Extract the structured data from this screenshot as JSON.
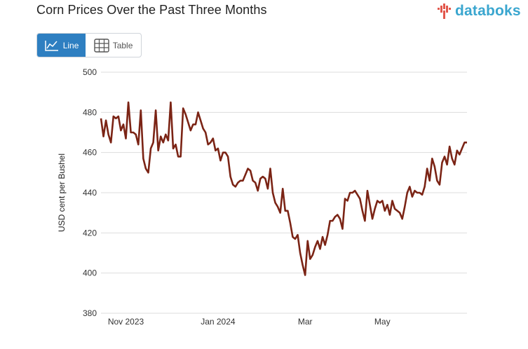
{
  "header": {
    "title": "Corn Prices Over the Past Three Months",
    "logo_text": "databoks"
  },
  "view_toggle": {
    "line_label": "Line",
    "table_label": "Table",
    "active": "Line"
  },
  "colors": {
    "line": "#7b2415",
    "grid": "#dddddd",
    "toggle_active": "#2e7fc1",
    "brand_blue": "#3aa6cf",
    "brand_red": "#e2574c"
  },
  "chart_data": {
    "type": "line",
    "title": "",
    "xlabel": "",
    "ylabel": "USD cent per Bushel",
    "ylim": [
      380,
      500
    ],
    "yticks": [
      380,
      400,
      420,
      440,
      460,
      480,
      500
    ],
    "grid": true,
    "xtick_labels": [
      {
        "label": "Nov 2023",
        "index": 10
      },
      {
        "label": "Jan 2024",
        "index": 47
      },
      {
        "label": "Mar",
        "index": 82
      },
      {
        "label": "May",
        "index": 113
      }
    ],
    "series": [
      {
        "values": [
          477,
          468,
          476,
          469,
          465,
          478,
          477,
          478,
          471,
          474,
          467,
          485,
          470,
          470,
          469,
          464,
          481,
          457,
          452,
          450,
          462,
          465,
          481,
          461,
          468,
          465,
          469,
          466,
          485,
          462,
          464,
          458,
          458,
          482,
          479,
          475,
          471,
          474,
          474,
          480,
          476,
          472,
          470,
          464,
          465,
          467,
          461,
          462,
          456,
          460,
          460,
          458,
          448,
          444,
          443,
          445,
          446,
          446,
          449,
          452,
          451,
          446,
          445,
          441,
          447,
          448,
          447,
          442,
          452,
          440,
          435,
          433,
          430,
          442,
          431,
          431,
          425,
          418,
          417,
          419,
          410,
          404,
          399,
          416,
          407,
          409,
          413,
          416,
          412,
          418,
          414,
          419,
          426,
          426,
          428,
          429,
          427,
          422,
          437,
          436,
          440,
          440,
          441,
          439,
          437,
          431,
          426,
          441,
          434,
          427,
          432,
          436,
          435,
          436,
          431,
          434,
          429,
          436,
          432,
          431,
          430,
          427,
          433,
          440,
          443,
          438,
          441,
          440,
          440,
          439,
          443,
          452,
          446,
          457,
          453,
          446,
          444,
          455,
          458,
          454,
          463,
          457,
          454,
          461,
          459,
          462,
          465,
          465
        ]
      }
    ]
  }
}
